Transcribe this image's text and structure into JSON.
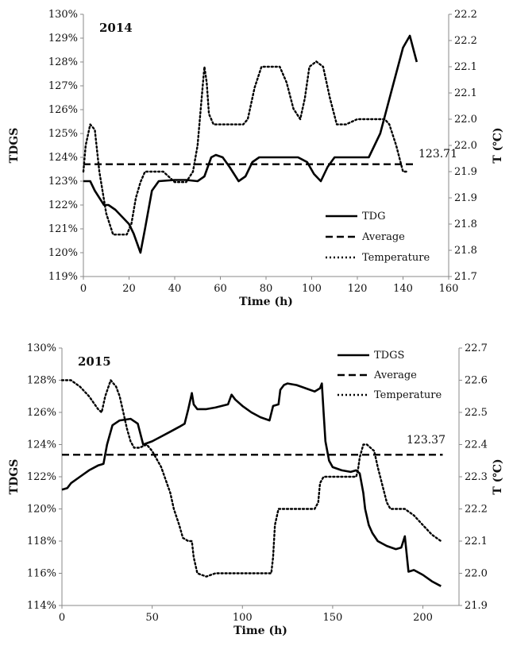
{
  "chart_data": [
    {
      "type": "line",
      "title": "2014",
      "xlabel": "Time (h)",
      "ylabel": "TDGS",
      "y2label": "T (℃)",
      "xlim": [
        0,
        160
      ],
      "xticks": [
        0,
        20,
        40,
        60,
        80,
        100,
        120,
        140,
        160
      ],
      "ylim": [
        119,
        130
      ],
      "yticks": [
        "119%",
        "120%",
        "121%",
        "122%",
        "123%",
        "124%",
        "125%",
        "126%",
        "127%",
        "128%",
        "129%",
        "130%"
      ],
      "y2lim": [
        21.7,
        22.2
      ],
      "y2ticks": [
        "21.7",
        "21.8",
        "21.8",
        "21.9",
        "21.9",
        "22.0",
        "22.0",
        "22.1",
        "22.1",
        "22.2",
        "22.2"
      ],
      "grid": false,
      "legend": "bottom-right",
      "average_label": "123.71",
      "series": [
        {
          "name": "TDG",
          "axis": "left",
          "style": "solid",
          "x": [
            0,
            3,
            5,
            9,
            11,
            14,
            17,
            20,
            22,
            25,
            27,
            30,
            33,
            40,
            45,
            50,
            53,
            56,
            58,
            61,
            64,
            68,
            71,
            74,
            77,
            80,
            85,
            90,
            94,
            98,
            101,
            104,
            107,
            110,
            115,
            120,
            125,
            130,
            135,
            140,
            143,
            146
          ],
          "y": [
            123.0,
            123.0,
            122.6,
            122.0,
            122.0,
            121.8,
            121.5,
            121.2,
            120.8,
            120.0,
            121.0,
            122.6,
            123.0,
            123.05,
            123.05,
            123.0,
            123.2,
            124.0,
            124.1,
            124.0,
            123.6,
            123.0,
            123.2,
            123.8,
            124.0,
            124.0,
            124.0,
            124.0,
            124.0,
            123.8,
            123.3,
            123.0,
            123.6,
            124.0,
            124.0,
            124.0,
            124.0,
            125.0,
            126.8,
            128.6,
            129.1,
            128.0
          ]
        },
        {
          "name": "Average",
          "axis": "left",
          "style": "dashed",
          "x": [
            0,
            146
          ],
          "y": [
            123.71,
            123.71
          ]
        },
        {
          "name": "Temperature",
          "axis": "right",
          "style": "dotted",
          "x": [
            0,
            1,
            3,
            5,
            7,
            10,
            13,
            16,
            19,
            21,
            23,
            25,
            27,
            30,
            35,
            40,
            45,
            48,
            50,
            52,
            53,
            54,
            55,
            57,
            60,
            63,
            67,
            70,
            72,
            75,
            78,
            80,
            83,
            86,
            89,
            92,
            95,
            97,
            99,
            102,
            105,
            108,
            111,
            115,
            120,
            125,
            130,
            132,
            134,
            137,
            140,
            142
          ],
          "y": [
            21.9,
            21.95,
            21.99,
            21.98,
            21.9,
            21.82,
            21.78,
            21.78,
            21.78,
            21.8,
            21.85,
            21.88,
            21.9,
            21.9,
            21.9,
            21.88,
            21.88,
            21.9,
            21.95,
            22.05,
            22.1,
            22.07,
            22.01,
            21.99,
            21.99,
            21.99,
            21.99,
            21.99,
            22.0,
            22.06,
            22.1,
            22.1,
            22.1,
            22.1,
            22.07,
            22.02,
            22.0,
            22.04,
            22.1,
            22.11,
            22.1,
            22.04,
            21.99,
            21.99,
            22.0,
            22.0,
            22.0,
            22.0,
            21.99,
            21.95,
            21.9,
            21.9
          ]
        }
      ]
    },
    {
      "type": "line",
      "title": "2015",
      "xlabel": "Time (h)",
      "ylabel": "TDGS",
      "y2label": "T (℃)",
      "xlim": [
        0,
        220
      ],
      "xticks": [
        0,
        50,
        100,
        150,
        200
      ],
      "ylim": [
        114,
        130
      ],
      "yticks": [
        "114%",
        "116%",
        "118%",
        "120%",
        "122%",
        "124%",
        "126%",
        "128%",
        "130%"
      ],
      "y2lim": [
        21.9,
        22.7
      ],
      "y2ticks": [
        "21.9",
        "22.0",
        "22.1",
        "22.2",
        "22.3",
        "22.4",
        "22.5",
        "22.6",
        "22.7"
      ],
      "grid": false,
      "legend": "top-right",
      "average_label": "123.37",
      "series": [
        {
          "name": "TDGS",
          "axis": "left",
          "style": "solid",
          "x": [
            0,
            3,
            5,
            10,
            15,
            20,
            23,
            25,
            28,
            32,
            38,
            42,
            45,
            50,
            55,
            60,
            65,
            68,
            70,
            72,
            73,
            75,
            80,
            85,
            92,
            94,
            96,
            100,
            105,
            110,
            115,
            117,
            120,
            121,
            123,
            125,
            130,
            135,
            140,
            143,
            144,
            145,
            146,
            148,
            150,
            155,
            160,
            163,
            165,
            167,
            168,
            170,
            172,
            175,
            180,
            185,
            188,
            190,
            192,
            195,
            200,
            205,
            210
          ],
          "y": [
            121.2,
            121.3,
            121.6,
            122.0,
            122.4,
            122.7,
            122.8,
            124.0,
            125.2,
            125.5,
            125.6,
            125.3,
            124.0,
            124.2,
            124.5,
            124.8,
            125.1,
            125.3,
            126.2,
            127.2,
            126.5,
            126.2,
            126.2,
            126.3,
            126.5,
            127.1,
            126.8,
            126.4,
            126.0,
            125.7,
            125.5,
            126.4,
            126.5,
            127.4,
            127.7,
            127.8,
            127.7,
            127.5,
            127.3,
            127.5,
            127.8,
            126.0,
            124.2,
            123.0,
            122.6,
            122.4,
            122.3,
            122.4,
            122.2,
            121.0,
            120.0,
            119.0,
            118.5,
            118.0,
            117.7,
            117.5,
            117.6,
            118.3,
            116.1,
            116.2,
            115.9,
            115.5,
            115.2
          ]
        },
        {
          "name": "Average",
          "axis": "left",
          "style": "dashed",
          "x": [
            0,
            211
          ],
          "y": [
            123.37,
            123.37
          ]
        },
        {
          "name": "Temperature",
          "axis": "right",
          "style": "dotted",
          "x": [
            0,
            5,
            10,
            15,
            20,
            22,
            24,
            27,
            30,
            32,
            34,
            36,
            38,
            40,
            43,
            47,
            50,
            55,
            60,
            62,
            65,
            67,
            70,
            72,
            73,
            75,
            80,
            85,
            90,
            95,
            100,
            105,
            110,
            114,
            116,
            117,
            118,
            120,
            125,
            130,
            135,
            140,
            142,
            143,
            145,
            150,
            155,
            160,
            163,
            164,
            165,
            167,
            169,
            171,
            173,
            175,
            180,
            182,
            185,
            190,
            195,
            200,
            205,
            210
          ],
          "y": [
            22.6,
            22.6,
            22.58,
            22.55,
            22.51,
            22.5,
            22.55,
            22.6,
            22.58,
            22.55,
            22.5,
            22.45,
            22.41,
            22.39,
            22.39,
            22.4,
            22.38,
            22.33,
            22.25,
            22.2,
            22.15,
            22.11,
            22.1,
            22.1,
            22.05,
            22.0,
            21.99,
            22.0,
            22.0,
            22.0,
            22.0,
            22.0,
            22.0,
            22.0,
            22.0,
            22.05,
            22.15,
            22.2,
            22.2,
            22.2,
            22.2,
            22.2,
            22.22,
            22.28,
            22.3,
            22.3,
            22.3,
            22.3,
            22.3,
            22.32,
            22.36,
            22.4,
            22.4,
            22.39,
            22.38,
            22.33,
            22.22,
            22.2,
            22.2,
            22.2,
            22.18,
            22.15,
            22.12,
            22.1
          ]
        }
      ]
    }
  ]
}
